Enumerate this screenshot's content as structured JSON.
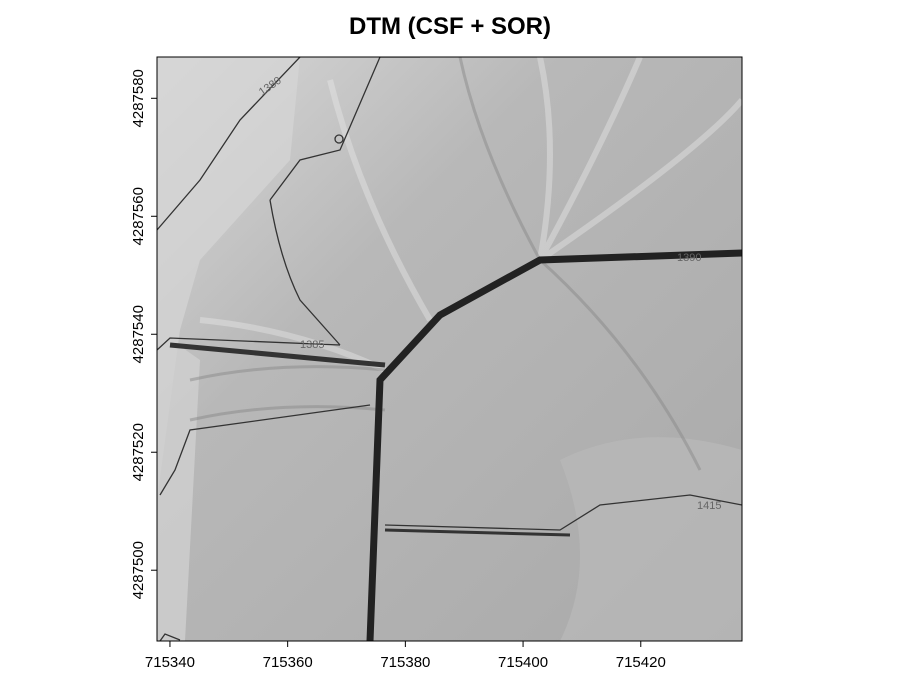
{
  "chart_data": {
    "type": "raster",
    "title": "DTM (CSF + SOR)",
    "xlim": [
      715337.8,
      715437.2
    ],
    "xticks": [
      715340,
      715360,
      715380,
      715400,
      715420
    ],
    "ylim": [
      4287488,
      4287587
    ],
    "yticks": [
      4287500,
      4287520,
      4287540,
      4287560,
      4287580
    ],
    "contour_labels": [
      "1380",
      "1385",
      "1390",
      "1415"
    ]
  }
}
